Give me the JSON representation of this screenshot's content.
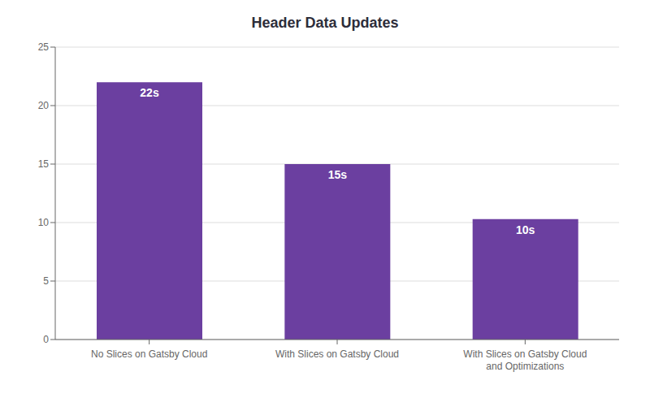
{
  "chart_data": {
    "type": "bar",
    "title": "Header Data Updates",
    "categories": [
      "No Slices on Gatsby Cloud",
      "With Slices on Gatsby Cloud",
      "With Slices on Gatsby Cloud\nand Optimizations"
    ],
    "values": [
      22,
      15,
      10.3
    ],
    "value_labels": [
      "22s",
      "15s",
      "10s"
    ],
    "data_labels": true,
    "color": "#6b3fa0",
    "ylim": [
      0,
      25
    ],
    "yticks": [
      0,
      5,
      10,
      15,
      20,
      25
    ],
    "grid": true
  }
}
